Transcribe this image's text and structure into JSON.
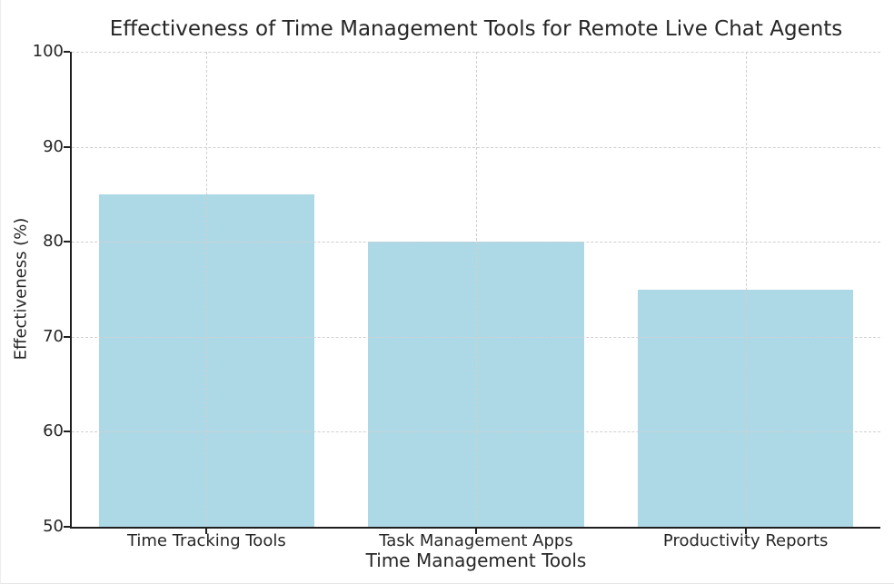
{
  "chart_data": {
    "type": "bar",
    "title": "Effectiveness of Time Management Tools for Remote Live Chat Agents",
    "xlabel": "Time Management Tools",
    "ylabel": "Effectiveness (%)",
    "categories": [
      "Time Tracking Tools",
      "Task Management Apps",
      "Productivity Reports"
    ],
    "values": [
      85,
      80,
      75
    ],
    "ylim": [
      50,
      100
    ],
    "yticks": [
      50,
      60,
      70,
      80,
      90,
      100
    ],
    "bar_color": "#ADD8E6",
    "bar_width_fraction": 0.8,
    "axis_color": "#1f1f1f",
    "text_color": "#262626",
    "grid": {
      "show": true,
      "style": "dashed",
      "color": "#d0d0d0",
      "horizontal": true,
      "vertical_at_bar_centers": true
    },
    "legend": "none",
    "background": "#ffffff"
  }
}
